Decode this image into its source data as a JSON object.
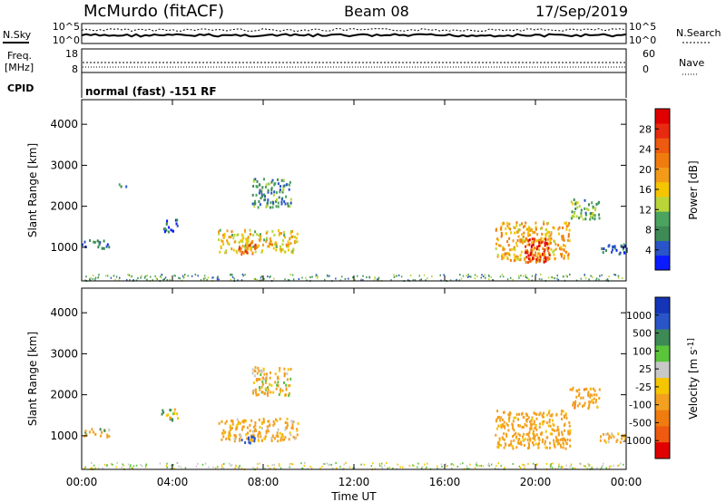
{
  "header": {
    "radar": "McMurdo (fitACF)",
    "beam": "Beam 08",
    "date": "17/Sep/2019"
  },
  "params_panel": {
    "nsky_label": "N.Sky",
    "nsearch_label": "N.Search",
    "noise_ticks": [
      "10^5",
      "10^0"
    ],
    "freq_label_line1": "Freq.",
    "freq_label_line2": "[MHz]",
    "freq_ticks": [
      "18",
      "8"
    ],
    "nave_label": "Nave",
    "nave_ticks": [
      "60",
      "0"
    ],
    "cpid_label": "CPID",
    "cpid_text": "normal (fast) -151 RF"
  },
  "colors": {
    "power_scale": [
      "#0a1bff",
      "#2a55c8",
      "#3d8a55",
      "#4ca35f",
      "#b8d63a",
      "#f5c600",
      "#f39b18",
      "#f07c10",
      "#ee5a10",
      "#e82a10",
      "#e00000"
    ],
    "velocity_scale": [
      "#1535b8",
      "#2a55c8",
      "#3d8a55",
      "#5ac43a",
      "#c8c8c8",
      "#f5c600",
      "#f3a020",
      "#f07c10",
      "#ee5a10",
      "#e00000"
    ]
  },
  "chart_data": [
    {
      "type": "heatmap",
      "title": "",
      "xlabel": "Time UT",
      "ylabel": "Slant Range [km]",
      "colorbar_label": "Power [dB]",
      "colorbar_ticks": [
        "28",
        "24",
        "20",
        "16",
        "12",
        "8",
        "4"
      ],
      "xlim": [
        0,
        24
      ],
      "ylim": [
        180,
        4600
      ],
      "x_ticks": [
        "00:00",
        "04:00",
        "08:00",
        "12:00",
        "16:00",
        "20:00",
        "00:00"
      ],
      "y_ticks": [
        "1000",
        "2000",
        "3000",
        "4000"
      ],
      "scatter_regions": [
        {
          "t0": 0.0,
          "t1": 1.2,
          "r0": 1000,
          "r1": 1200,
          "value": 6
        },
        {
          "t0": 1.6,
          "t1": 2.0,
          "r0": 2500,
          "r1": 2600,
          "value": 6
        },
        {
          "t0": 3.5,
          "t1": 4.2,
          "r0": 1400,
          "r1": 1700,
          "value": 5
        },
        {
          "t0": 6.0,
          "t1": 9.5,
          "r0": 900,
          "r1": 1450,
          "value": 16
        },
        {
          "t0": 6.8,
          "t1": 7.8,
          "r0": 850,
          "r1": 1150,
          "value": 24
        },
        {
          "t0": 7.5,
          "t1": 9.2,
          "r0": 2000,
          "r1": 2700,
          "value": 8
        },
        {
          "t0": 18.2,
          "t1": 21.5,
          "r0": 700,
          "r1": 1650,
          "value": 18
        },
        {
          "t0": 19.5,
          "t1": 20.6,
          "r0": 650,
          "r1": 1250,
          "value": 28
        },
        {
          "t0": 21.5,
          "t1": 22.8,
          "r0": 1700,
          "r1": 2200,
          "value": 10
        },
        {
          "t0": 22.8,
          "t1": 24.0,
          "r0": 850,
          "r1": 1100,
          "value": 6
        }
      ]
    },
    {
      "type": "heatmap",
      "title": "",
      "xlabel": "Time UT",
      "ylabel": "Slant Range [km]",
      "colorbar_label": "Velocity [m s^-1]",
      "colorbar_ticks": [
        "1000",
        "500",
        "100",
        "25",
        "-25",
        "-100",
        "-500",
        "-1000"
      ],
      "xlim": [
        0,
        24
      ],
      "ylim": [
        180,
        4600
      ],
      "x_ticks": [
        "00:00",
        "04:00",
        "08:00",
        "12:00",
        "16:00",
        "20:00",
        "00:00"
      ],
      "y_ticks": [
        "1000",
        "2000",
        "3000",
        "4000"
      ],
      "scatter_regions": [
        {
          "t0": 0.0,
          "t1": 1.2,
          "r0": 1000,
          "r1": 1200,
          "value": -100
        },
        {
          "t0": 3.5,
          "t1": 4.2,
          "r0": 1400,
          "r1": 1700,
          "value": 100
        },
        {
          "t0": 6.0,
          "t1": 9.5,
          "r0": 900,
          "r1": 1450,
          "value": -200
        },
        {
          "t0": 7.0,
          "t1": 7.6,
          "r0": 800,
          "r1": 1050,
          "value": 700
        },
        {
          "t0": 7.5,
          "t1": 9.2,
          "r0": 2000,
          "r1": 2700,
          "value": -150
        },
        {
          "t0": 18.2,
          "t1": 21.5,
          "r0": 700,
          "r1": 1650,
          "value": -250
        },
        {
          "t0": 21.5,
          "t1": 22.8,
          "r0": 1700,
          "r1": 2200,
          "value": -300
        },
        {
          "t0": 22.8,
          "t1": 24.0,
          "r0": 850,
          "r1": 1100,
          "value": -200
        }
      ]
    }
  ]
}
